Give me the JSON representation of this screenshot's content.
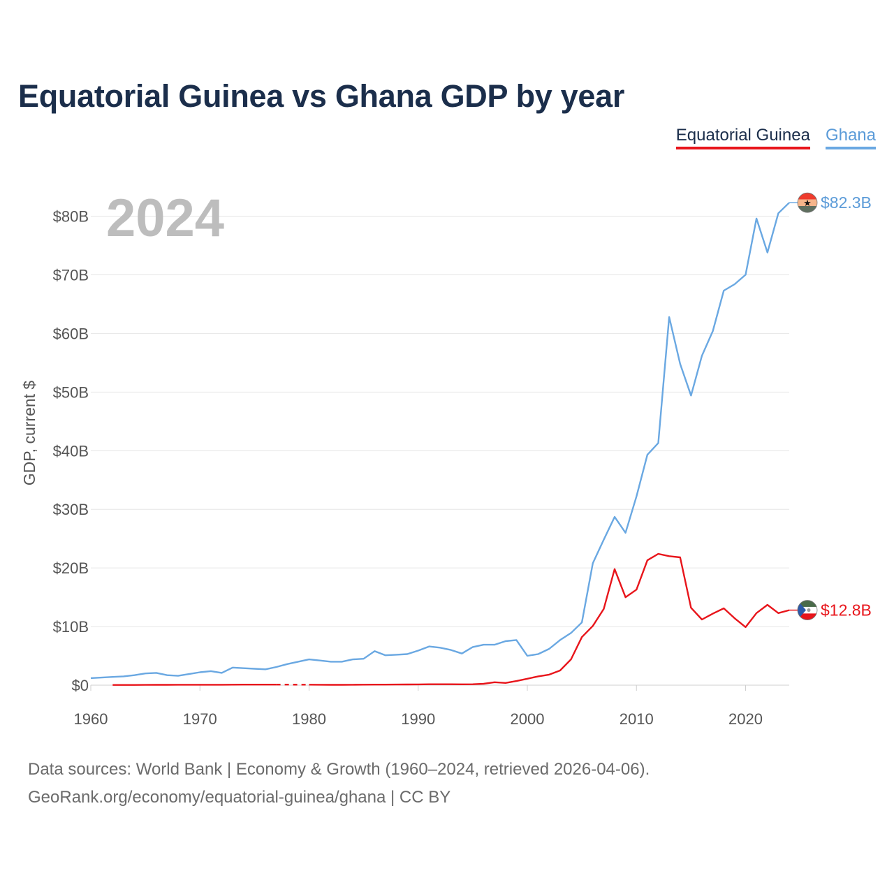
{
  "chart_data": {
    "type": "line",
    "title": "Equatorial Guinea vs Ghana GDP by year",
    "ylabel": "GDP, current $",
    "xlabel": "",
    "year_label": "2024",
    "xlim": [
      1960,
      2024
    ],
    "ylim": [
      0,
      85
    ],
    "x_ticks": [
      1960,
      1970,
      1980,
      1990,
      2000,
      2010,
      2020
    ],
    "y_ticks": [
      0,
      10,
      20,
      30,
      40,
      50,
      60,
      70,
      80
    ],
    "y_tick_labels": [
      "$0",
      "$10B",
      "$20B",
      "$30B",
      "$40B",
      "$50B",
      "$60B",
      "$70B",
      "$80B"
    ],
    "legend": [
      "Equatorial Guinea",
      "Ghana"
    ],
    "series": [
      {
        "name": "Ghana",
        "color": "#6aa8e2",
        "label_color": "#5b9bd8",
        "end_label": "$82.3B",
        "x": [
          1960,
          1961,
          1962,
          1963,
          1964,
          1965,
          1966,
          1967,
          1968,
          1969,
          1970,
          1971,
          1972,
          1973,
          1974,
          1975,
          1976,
          1977,
          1978,
          1979,
          1980,
          1981,
          1982,
          1983,
          1984,
          1985,
          1986,
          1987,
          1988,
          1989,
          1990,
          1991,
          1992,
          1993,
          1994,
          1995,
          1996,
          1997,
          1998,
          1999,
          2000,
          2001,
          2002,
          2003,
          2004,
          2005,
          2006,
          2007,
          2008,
          2009,
          2010,
          2011,
          2012,
          2013,
          2014,
          2015,
          2016,
          2017,
          2018,
          2019,
          2020,
          2021,
          2022,
          2023,
          2024
        ],
        "values": [
          1.2,
          1.3,
          1.4,
          1.5,
          1.7,
          2.0,
          2.1,
          1.7,
          1.6,
          1.9,
          2.2,
          2.4,
          2.1,
          3.0,
          2.9,
          2.8,
          2.7,
          3.1,
          3.6,
          4.0,
          4.4,
          4.2,
          4.0,
          4.0,
          4.4,
          4.5,
          5.8,
          5.1,
          5.2,
          5.3,
          5.9,
          6.6,
          6.4,
          6.0,
          5.4,
          6.5,
          6.9,
          6.9,
          7.5,
          7.7,
          5.0,
          5.3,
          6.2,
          7.7,
          8.9,
          10.7,
          20.8,
          24.8,
          28.7,
          26.0,
          32.2,
          39.3,
          41.3,
          62.8,
          54.8,
          49.4,
          56.2,
          60.4,
          67.3,
          68.4,
          70.0,
          79.6,
          73.8,
          80.5,
          82.3
        ]
      },
      {
        "name": "Equatorial Guinea",
        "color": "#e8151b",
        "label_color": "#e8151b",
        "end_label": "$12.8B",
        "x": [
          1962,
          1963,
          1964,
          1965,
          1966,
          1967,
          1968,
          1969,
          1970,
          1971,
          1972,
          1973,
          1974,
          1975,
          1976,
          1977,
          1978,
          1979,
          1980,
          1981,
          1982,
          1983,
          1984,
          1985,
          1986,
          1987,
          1988,
          1989,
          1990,
          1991,
          1992,
          1993,
          1994,
          1995,
          1996,
          1997,
          1998,
          1999,
          2000,
          2001,
          2002,
          2003,
          2004,
          2005,
          2006,
          2007,
          2008,
          2009,
          2010,
          2011,
          2012,
          2013,
          2014,
          2015,
          2016,
          2017,
          2018,
          2019,
          2020,
          2021,
          2022,
          2023,
          2024
        ],
        "values": [
          0.03,
          0.03,
          0.04,
          0.05,
          0.06,
          0.06,
          0.07,
          0.07,
          0.07,
          0.07,
          0.07,
          0.08,
          0.09,
          0.1,
          0.1,
          0.1,
          null,
          null,
          0.08,
          0.07,
          0.06,
          0.06,
          0.07,
          0.08,
          0.1,
          0.1,
          0.11,
          0.12,
          0.13,
          0.15,
          0.16,
          0.16,
          0.14,
          0.16,
          0.24,
          0.5,
          0.38,
          0.7,
          1.1,
          1.5,
          1.8,
          2.5,
          4.4,
          8.2,
          10.1,
          13.0,
          19.8,
          15.0,
          16.3,
          21.3,
          22.4,
          22.0,
          21.8,
          13.2,
          11.2,
          12.2,
          13.1,
          11.4,
          9.9,
          12.3,
          13.7,
          12.3,
          12.8
        ]
      }
    ]
  },
  "footer": {
    "line1": "Data sources: World Bank | Economy & Growth (1960–2024, retrieved 2026-04-06).",
    "line2": "GeoRank.org/economy/equatorial-guinea/ghana | CC BY"
  }
}
